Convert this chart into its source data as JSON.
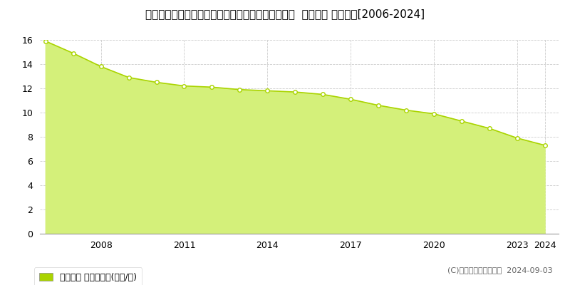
{
  "title": "愛知県知多郡南知多町大字師崎字神戸浦１７７番１  地価公示 地価推移[2006-2024]",
  "years": [
    2006,
    2007,
    2008,
    2009,
    2010,
    2011,
    2012,
    2013,
    2014,
    2015,
    2016,
    2017,
    2018,
    2019,
    2020,
    2021,
    2022,
    2023,
    2024
  ],
  "values": [
    15.9,
    14.9,
    13.8,
    12.9,
    12.5,
    12.2,
    12.1,
    11.9,
    11.8,
    11.7,
    11.5,
    11.1,
    10.6,
    10.2,
    9.9,
    9.3,
    8.7,
    7.9,
    7.3
  ],
  "line_color": "#aad400",
  "fill_color": "#d4f07a",
  "marker_color": "#ffffff",
  "marker_edge_color": "#aad400",
  "background_color": "#ffffff",
  "grid_color": "#cccccc",
  "ylim": [
    0,
    16
  ],
  "ytick_interval": 2,
  "xtick_years": [
    2008,
    2011,
    2014,
    2017,
    2020,
    2023,
    2024
  ],
  "legend_label": "地価公示 平均坪単価(万円/坪)",
  "copyright_text": "(C)土地価格ドットコム  2024-09-03",
  "title_fontsize": 11,
  "legend_fontsize": 9,
  "copyright_fontsize": 8,
  "tick_fontsize": 9
}
